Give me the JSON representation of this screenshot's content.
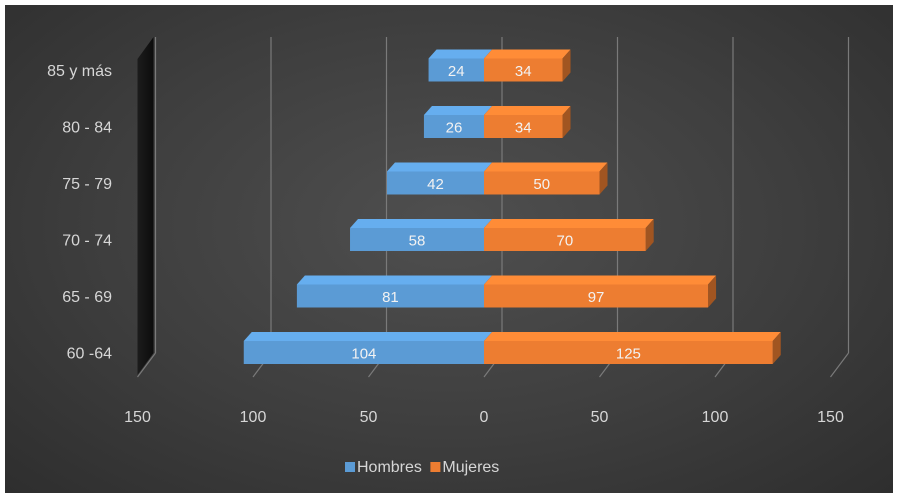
{
  "chart_data": {
    "type": "bar",
    "orientation": "horizontal",
    "style": "population-pyramid-3d",
    "categories": [
      "60 -64",
      "65 - 69",
      "70 - 74",
      "75 - 79",
      "80 - 84",
      "85 y más"
    ],
    "series": [
      {
        "name": "Hombres",
        "values": [
          104,
          81,
          58,
          42,
          26,
          24
        ],
        "color": "#5b9bd5",
        "side": "left"
      },
      {
        "name": "Mujeres",
        "values": [
          125,
          97,
          70,
          50,
          34,
          34
        ],
        "color": "#ed7d31",
        "side": "right"
      }
    ],
    "xlim": [
      -150,
      150
    ],
    "x_ticks": [
      150,
      100,
      50,
      0,
      50,
      100,
      150
    ],
    "grid": true,
    "legend_position": "bottom",
    "background": "#404040"
  }
}
